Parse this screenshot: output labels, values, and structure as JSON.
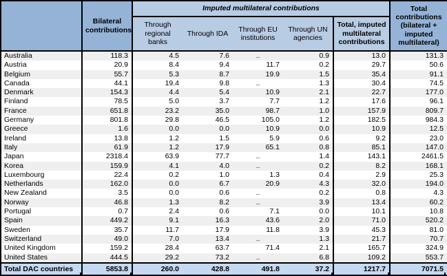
{
  "table": {
    "header": {
      "corner": "",
      "bilateral": "Bilateral contributions",
      "imputed_band": "Imputed multilateral contributions",
      "sub": [
        "Through regional banks",
        "Through IDA",
        "Through EU institutions",
        "Through UN agencies",
        "Total, imputed multilateral contributions"
      ],
      "total": "Total contributions (bilateral + imputed multilateral)"
    },
    "rows": [
      {
        "country": "Australia",
        "values": [
          "118.3",
          "4.5",
          "7.6",
          "..",
          "0.9",
          "13.0",
          "131.3"
        ]
      },
      {
        "country": "Austria",
        "values": [
          "20.9",
          "8.4",
          "9.4",
          "11.7",
          "0.2",
          "29.7",
          "50.6"
        ]
      },
      {
        "country": "Belgium",
        "values": [
          "55.7",
          "5.3",
          "8.7",
          "19.9",
          "1.5",
          "35.4",
          "91.1"
        ]
      },
      {
        "country": "Canada",
        "values": [
          "44.1",
          "19.4",
          "9.8",
          "..",
          "1.3",
          "30.4",
          "74.5"
        ]
      },
      {
        "country": "Denmark",
        "values": [
          "154.3",
          "4.4",
          "5.4",
          "10.9",
          "2.1",
          "22.7",
          "177.0"
        ]
      },
      {
        "country": "Finland",
        "values": [
          "78.5",
          "5.0",
          "3.7",
          "7.7",
          "1.2",
          "17.6",
          "96.1"
        ]
      },
      {
        "country": "France",
        "values": [
          "651.8",
          "23.2",
          "35.0",
          "98.7",
          "1.0",
          "157.9",
          "809.7"
        ]
      },
      {
        "country": "Germany",
        "values": [
          "801.8",
          "29.8",
          "46.5",
          "105.0",
          "1.2",
          "182.5",
          "984.3"
        ]
      },
      {
        "country": "Greece",
        "values": [
          "1.6",
          "0.0",
          "0.0",
          "10.9",
          "0.0",
          "10.9",
          "12.5"
        ]
      },
      {
        "country": "Ireland",
        "values": [
          "13.8",
          "1.2",
          "1.5",
          "5.9",
          "0.6",
          "9.2",
          "23.0"
        ]
      },
      {
        "country": "Italy",
        "values": [
          "61.9",
          "1.2",
          "17.9",
          "65.1",
          "0.8",
          "85.1",
          "147.0"
        ]
      },
      {
        "country": "Japan",
        "values": [
          "2318.4",
          "63.9",
          "77.7",
          "..",
          "1.4",
          "143.1",
          "2461.5"
        ]
      },
      {
        "country": "Korea",
        "values": [
          "159.9",
          "4.1",
          "4.0",
          "..",
          "0.2",
          "8.2",
          "168.1"
        ]
      },
      {
        "country": "Luxembourg",
        "values": [
          "22.4",
          "0.2",
          "1.0",
          "1.3",
          "0.4",
          "2.9",
          "25.3"
        ]
      },
      {
        "country": "Netherlands",
        "values": [
          "162.0",
          "0.0",
          "6.7",
          "20.9",
          "4.3",
          "32.0",
          "194.0"
        ]
      },
      {
        "country": "New Zealand",
        "values": [
          "3.5",
          "0.0",
          "0.6",
          "..",
          "0.2",
          "0.8",
          "4.3"
        ]
      },
      {
        "country": "Norway",
        "values": [
          "46.8",
          "1.3",
          "8.2",
          "..",
          "3.9",
          "13.4",
          "60.2"
        ]
      },
      {
        "country": "Portugal",
        "values": [
          "0.7",
          "2.4",
          "0.6",
          "7.1",
          "0.0",
          "10.1",
          "10.8"
        ]
      },
      {
        "country": "Spain",
        "values": [
          "449.2",
          "9.1",
          "16.3",
          "43.6",
          "2.0",
          "71.0",
          "520.2"
        ]
      },
      {
        "country": "Sweden",
        "values": [
          "35.7",
          "11.7",
          "17.9",
          "11.8",
          "3.9",
          "45.3",
          "81.0"
        ]
      },
      {
        "country": "Switzerland",
        "values": [
          "49.0",
          "7.0",
          "13.4",
          "..",
          "1.3",
          "21.7",
          "70.7"
        ]
      },
      {
        "country": "United Kingdom",
        "values": [
          "159.2",
          "28.4",
          "63.7",
          "71.4",
          "2.1",
          "165.7",
          "324.9"
        ]
      },
      {
        "country": "United States",
        "values": [
          "444.5",
          "29.2",
          "73.2",
          "..",
          "6.8",
          "109.2",
          "553.7"
        ]
      }
    ],
    "total_row": {
      "label": "Total DAC countries",
      "values": [
        "5853.8",
        "260.0",
        "428.8",
        "491.8",
        "37.2",
        "1217.7",
        "7071.5"
      ]
    },
    "missing_value_symbol": ".."
  },
  "colors": {
    "header_medium_blue": "#95B3D7",
    "header_light_blue": "#B8CCE4",
    "total_row_blue": "#C5D9F1",
    "row_stripe_gray": "#EFEFEF",
    "border_black": "#000000"
  }
}
